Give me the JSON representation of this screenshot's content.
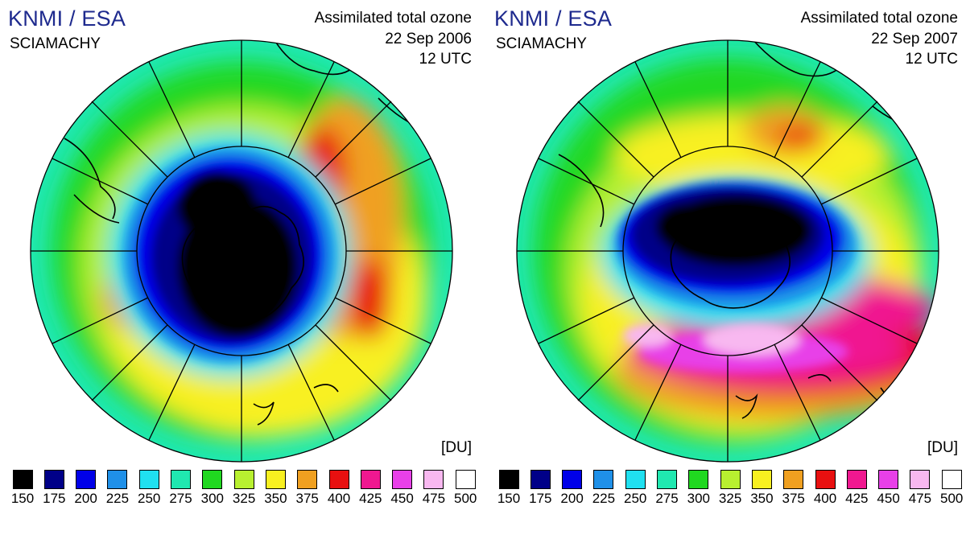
{
  "panels": [
    {
      "brand": "KNMI / ESA",
      "instrument": "SCIAMACHY",
      "product": "Assimilated total ozone",
      "date": "22 Sep 2006",
      "time": "12 UTC",
      "unit": "[DU]"
    },
    {
      "brand": "KNMI / ESA",
      "instrument": "SCIAMACHY",
      "product": "Assimilated total ozone",
      "date": "22 Sep 2007",
      "time": "12 UTC",
      "unit": "[DU]"
    }
  ],
  "scale": {
    "levels": [
      "150",
      "175",
      "200",
      "225",
      "250",
      "275",
      "300",
      "325",
      "350",
      "375",
      "400",
      "425",
      "450",
      "475",
      "500"
    ],
    "colors": [
      "#000000",
      "#000088",
      "#0000e8",
      "#1f90e8",
      "#20e0f0",
      "#20e8b0",
      "#20d820",
      "#b8f030",
      "#f8f020",
      "#f0a020",
      "#e81010",
      "#f01890",
      "#e840e8",
      "#f8b8f0",
      "#ffffff"
    ]
  }
}
